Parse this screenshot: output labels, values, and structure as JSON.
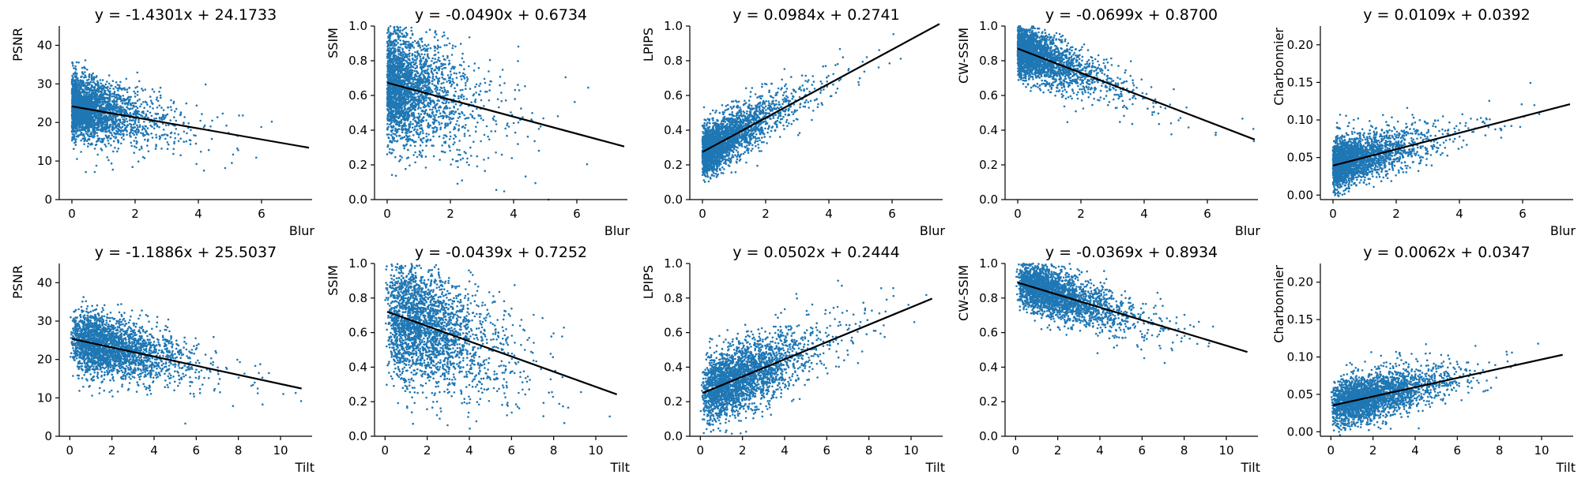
{
  "figure": {
    "point_color": "#1f77b4",
    "line_color": "#000000"
  },
  "chart_data": [
    {
      "type": "scatter",
      "title": "y = -1.4301x + 24.1733",
      "xlabel": "Blur",
      "ylabel": "PSNR",
      "slope": -1.4301,
      "intercept": 24.1733,
      "xlim": [
        -0.4,
        7.6
      ],
      "ylim": [
        0,
        45
      ],
      "xticks": [
        0,
        2,
        4,
        6
      ],
      "yticks": [
        0,
        10,
        20,
        30,
        40
      ],
      "fit_x": [
        0,
        7.5
      ],
      "ytick_decimals": 0
    },
    {
      "type": "scatter",
      "title": "y = -0.0490x + 0.6734",
      "xlabel": "Blur",
      "ylabel": "SSIM",
      "slope": -0.049,
      "intercept": 0.6734,
      "xlim": [
        -0.4,
        7.6
      ],
      "ylim": [
        0,
        1.0
      ],
      "xticks": [
        0,
        2,
        4,
        6
      ],
      "yticks": [
        0.0,
        0.2,
        0.4,
        0.6,
        0.8,
        1.0
      ],
      "fit_x": [
        0,
        7.5
      ],
      "ytick_decimals": 1
    },
    {
      "type": "scatter",
      "title": "y = 0.0984x + 0.2741",
      "xlabel": "Blur",
      "ylabel": "LPIPS",
      "slope": 0.0984,
      "intercept": 0.2741,
      "xlim": [
        -0.4,
        7.6
      ],
      "ylim": [
        0,
        1.0
      ],
      "xticks": [
        0,
        2,
        4,
        6
      ],
      "yticks": [
        0.0,
        0.2,
        0.4,
        0.6,
        0.8,
        1.0
      ],
      "fit_x": [
        0,
        7.5
      ],
      "ytick_decimals": 1
    },
    {
      "type": "scatter",
      "title": "y = -0.0699x + 0.8700",
      "xlabel": "Blur",
      "ylabel": "CW-SSIM",
      "slope": -0.0699,
      "intercept": 0.87,
      "xlim": [
        -0.4,
        7.6
      ],
      "ylim": [
        0,
        1.0
      ],
      "xticks": [
        0,
        2,
        4,
        6
      ],
      "yticks": [
        0.0,
        0.2,
        0.4,
        0.6,
        0.8,
        1.0
      ],
      "fit_x": [
        0,
        7.5
      ],
      "ytick_decimals": 1
    },
    {
      "type": "scatter",
      "title": "y = 0.0109x + 0.0392",
      "xlabel": "Blur",
      "ylabel": "Charbonnier",
      "slope": 0.0109,
      "intercept": 0.0392,
      "xlim": [
        -0.4,
        7.6
      ],
      "ylim": [
        -0.006,
        0.225
      ],
      "xticks": [
        0,
        2,
        4,
        6
      ],
      "yticks": [
        0.0,
        0.05,
        0.1,
        0.15,
        0.2
      ],
      "fit_x": [
        0,
        7.5
      ],
      "ytick_decimals": 2
    },
    {
      "type": "scatter",
      "title": "y = -1.1886x + 25.5037",
      "xlabel": "Tilt",
      "ylabel": "PSNR",
      "slope": -1.1886,
      "intercept": 25.5037,
      "xlim": [
        -0.5,
        11.5
      ],
      "ylim": [
        0,
        45
      ],
      "xticks": [
        0,
        2,
        4,
        6,
        8,
        10
      ],
      "yticks": [
        0,
        10,
        20,
        30,
        40
      ],
      "fit_x": [
        0.1,
        11
      ],
      "ytick_decimals": 0
    },
    {
      "type": "scatter",
      "title": "y = -0.0439x + 0.7252",
      "xlabel": "Tilt",
      "ylabel": "SSIM",
      "slope": -0.0439,
      "intercept": 0.7252,
      "xlim": [
        -0.5,
        11.5
      ],
      "ylim": [
        0,
        1.0
      ],
      "xticks": [
        0,
        2,
        4,
        6,
        8,
        10
      ],
      "yticks": [
        0.0,
        0.2,
        0.4,
        0.6,
        0.8,
        1.0
      ],
      "fit_x": [
        0.1,
        11
      ],
      "ytick_decimals": 1
    },
    {
      "type": "scatter",
      "title": "y = 0.0502x + 0.2444",
      "xlabel": "Tilt",
      "ylabel": "LPIPS",
      "slope": 0.0502,
      "intercept": 0.2444,
      "xlim": [
        -0.5,
        11.5
      ],
      "ylim": [
        0,
        1.0
      ],
      "xticks": [
        0,
        2,
        4,
        6,
        8,
        10
      ],
      "yticks": [
        0.0,
        0.2,
        0.4,
        0.6,
        0.8,
        1.0
      ],
      "fit_x": [
        0.1,
        11
      ],
      "ytick_decimals": 1
    },
    {
      "type": "scatter",
      "title": "y = -0.0369x + 0.8934",
      "xlabel": "Tilt",
      "ylabel": "CW-SSIM",
      "slope": -0.0369,
      "intercept": 0.8934,
      "xlim": [
        -0.5,
        11.5
      ],
      "ylim": [
        0,
        1.0
      ],
      "xticks": [
        0,
        2,
        4,
        6,
        8,
        10
      ],
      "yticks": [
        0.0,
        0.2,
        0.4,
        0.6,
        0.8,
        1.0
      ],
      "fit_x": [
        0.1,
        11
      ],
      "ytick_decimals": 1
    },
    {
      "type": "scatter",
      "title": "y = 0.0062x + 0.0347",
      "xlabel": "Tilt",
      "ylabel": "Charbonnier",
      "slope": 0.0062,
      "intercept": 0.0347,
      "xlim": [
        -0.5,
        11.5
      ],
      "ylim": [
        -0.006,
        0.225
      ],
      "xticks": [
        0,
        2,
        4,
        6,
        8,
        10
      ],
      "yticks": [
        0.0,
        0.05,
        0.1,
        0.15,
        0.2
      ],
      "fit_x": [
        0.1,
        11
      ],
      "ytick_decimals": 2
    }
  ]
}
